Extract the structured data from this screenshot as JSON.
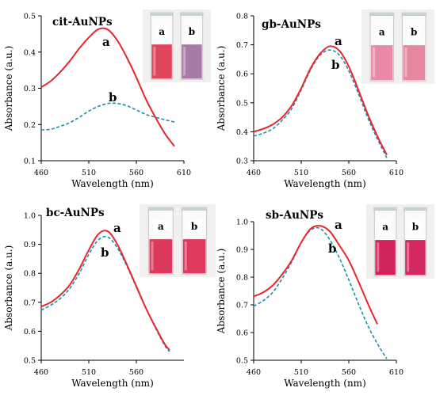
{
  "chart_data": [
    {
      "type": "line",
      "title": "cit-AuNPs",
      "xlabel": "Wavelength (nm)",
      "ylabel": "Absorbance (a.u.)",
      "xlim": [
        460,
        610
      ],
      "ylim": [
        0.1,
        0.5
      ],
      "xticks": [
        460,
        510,
        560,
        610
      ],
      "yticks": [
        0.1,
        0.2,
        0.3,
        0.4,
        0.5
      ],
      "series": [
        {
          "name": "a",
          "style": "solid",
          "color": "#e8262b",
          "x": [
            460,
            470,
            480,
            490,
            500,
            510,
            520,
            530,
            540,
            550,
            560,
            570,
            580,
            590,
            600
          ],
          "y": [
            0.303,
            0.32,
            0.345,
            0.375,
            0.41,
            0.44,
            0.463,
            0.462,
            0.432,
            0.385,
            0.33,
            0.27,
            0.22,
            0.175,
            0.14
          ]
        },
        {
          "name": "b",
          "style": "dashed",
          "color": "#1a8fa8",
          "x": [
            460,
            470,
            480,
            490,
            500,
            510,
            520,
            530,
            540,
            550,
            560,
            570,
            580,
            590,
            600
          ],
          "y": [
            0.185,
            0.187,
            0.195,
            0.205,
            0.22,
            0.237,
            0.25,
            0.258,
            0.258,
            0.252,
            0.24,
            0.228,
            0.22,
            0.213,
            0.207
          ]
        }
      ]
    },
    {
      "type": "line",
      "title": "gb-AuNPs",
      "xlabel": "Wavelength (nm)",
      "ylabel": "Absorbance (a.u.)",
      "xlim": [
        460,
        610
      ],
      "ylim": [
        0.3,
        0.8
      ],
      "xticks": [
        460,
        510,
        560,
        610
      ],
      "yticks": [
        0.3,
        0.4,
        0.5,
        0.6,
        0.7,
        0.8
      ],
      "series": [
        {
          "name": "a",
          "style": "solid",
          "color": "#e8262b",
          "x": [
            460,
            470,
            480,
            490,
            500,
            510,
            520,
            530,
            540,
            550,
            560,
            570,
            580,
            590,
            600
          ],
          "y": [
            0.4,
            0.41,
            0.425,
            0.45,
            0.49,
            0.55,
            0.62,
            0.67,
            0.695,
            0.68,
            0.625,
            0.545,
            0.46,
            0.385,
            0.32
          ]
        },
        {
          "name": "b",
          "style": "dashed",
          "color": "#1a8fa8",
          "x": [
            460,
            470,
            480,
            490,
            500,
            510,
            520,
            530,
            540,
            550,
            560,
            570,
            580,
            590,
            600
          ],
          "y": [
            0.385,
            0.395,
            0.41,
            0.44,
            0.48,
            0.545,
            0.615,
            0.665,
            0.682,
            0.665,
            0.61,
            0.532,
            0.448,
            0.375,
            0.31
          ]
        }
      ]
    },
    {
      "type": "line",
      "title": "bc-AuNPs",
      "xlabel": "Wavelength (nm)",
      "ylabel": "Absorbance (a.u.)",
      "xlim": [
        460,
        610
      ],
      "ylim": [
        0.5,
        1.0
      ],
      "xticks": [
        460,
        510,
        560
      ],
      "yticks": [
        0.5,
        0.6,
        0.7,
        0.8,
        0.9,
        1.0
      ],
      "series": [
        {
          "name": "a",
          "style": "solid",
          "color": "#e8262b",
          "x": [
            460,
            470,
            480,
            490,
            500,
            510,
            520,
            530,
            540,
            550,
            560,
            570,
            580,
            590,
            595
          ],
          "y": [
            0.685,
            0.7,
            0.725,
            0.76,
            0.815,
            0.88,
            0.935,
            0.945,
            0.9,
            0.83,
            0.755,
            0.68,
            0.615,
            0.555,
            0.535
          ]
        },
        {
          "name": "b",
          "style": "dashed",
          "color": "#1a8fa8",
          "x": [
            460,
            470,
            480,
            490,
            500,
            510,
            520,
            530,
            540,
            550,
            560,
            570,
            580,
            590,
            595
          ],
          "y": [
            0.673,
            0.69,
            0.713,
            0.748,
            0.8,
            0.865,
            0.915,
            0.925,
            0.888,
            0.825,
            0.752,
            0.68,
            0.612,
            0.55,
            0.53
          ]
        }
      ]
    },
    {
      "type": "line",
      "title": "sb-AuNPs",
      "xlabel": "Wavelength (nm)",
      "ylabel": "Absorbance (a.u.)",
      "xlim": [
        460,
        610
      ],
      "ylim": [
        0.5,
        1.0
      ],
      "xticks": [
        460,
        510,
        560,
        610
      ],
      "yticks": [
        0.5,
        0.6,
        0.7,
        0.8,
        0.9,
        1.0
      ],
      "series": [
        {
          "name": "a",
          "style": "solid",
          "color": "#e8262b",
          "x": [
            460,
            470,
            480,
            490,
            500,
            510,
            520,
            530,
            540,
            550,
            560,
            570,
            580,
            590
          ],
          "y": [
            0.73,
            0.745,
            0.77,
            0.81,
            0.86,
            0.925,
            0.975,
            0.985,
            0.965,
            0.915,
            0.86,
            0.785,
            0.705,
            0.63
          ]
        },
        {
          "name": "b",
          "style": "dashed",
          "color": "#1a8fa8",
          "x": [
            460,
            470,
            480,
            490,
            500,
            510,
            520,
            530,
            540,
            550,
            560,
            570,
            580,
            590,
            600
          ],
          "y": [
            0.695,
            0.715,
            0.745,
            0.795,
            0.855,
            0.925,
            0.97,
            0.975,
            0.935,
            0.87,
            0.79,
            0.705,
            0.625,
            0.56,
            0.505
          ]
        }
      ]
    }
  ],
  "vials": [
    {
      "labels": [
        "a",
        "b"
      ],
      "colors": [
        "#e0455e",
        "#a87aa6"
      ]
    },
    {
      "labels": [
        "a",
        "b"
      ],
      "colors": [
        "#e88aa8",
        "#e6879f"
      ]
    },
    {
      "labels": [
        "a",
        "b"
      ],
      "colors": [
        "#dc3a5c",
        "#de3a60"
      ]
    },
    {
      "labels": [
        "a",
        "b"
      ],
      "colors": [
        "#d0245a",
        "#d42860"
      ]
    }
  ]
}
